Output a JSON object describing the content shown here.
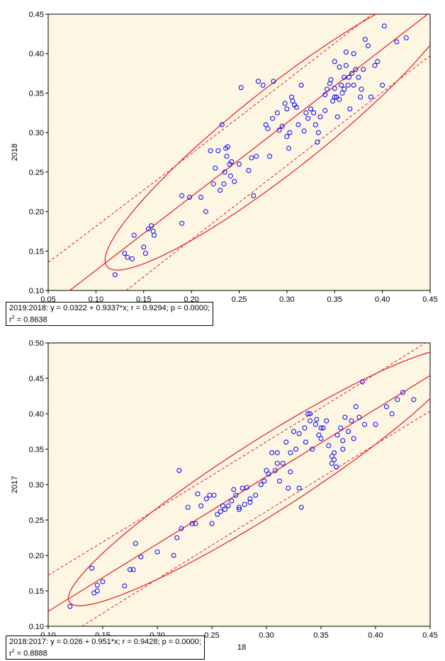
{
  "colors": {
    "background": "#fdf6e3",
    "points": "#0000ff",
    "lines": "#e8181e"
  },
  "chart_data": [
    {
      "type": "scatter",
      "ylabel": "2018",
      "xlabel": "",
      "xlim": [
        0.05,
        0.45
      ],
      "ylim": [
        0.1,
        0.45
      ],
      "xticks": [
        "0.05",
        "0.10",
        "0.15",
        "0.20",
        "0.25",
        "0.30",
        "0.35",
        "0.40",
        "0.45"
      ],
      "yticks": [
        "0.10",
        "0.15",
        "0.20",
        "0.25",
        "0.30",
        "0.35",
        "0.40",
        "0.45"
      ],
      "regression": {
        "intercept": 0.0322,
        "slope": 0.9337
      },
      "stats_line1": "2019:2018:  y = 0.0322 + 0.9337*x;  r = 0.9294; p = 0.0000;",
      "stats_r2_label": "r",
      "stats_r2_value": " = 0.8638",
      "points": [
        [
          0.12,
          0.12
        ],
        [
          0.13,
          0.147
        ],
        [
          0.133,
          0.142
        ],
        [
          0.138,
          0.14
        ],
        [
          0.14,
          0.17
        ],
        [
          0.15,
          0.155
        ],
        [
          0.152,
          0.147
        ],
        [
          0.155,
          0.178
        ],
        [
          0.158,
          0.182
        ],
        [
          0.16,
          0.175
        ],
        [
          0.161,
          0.17
        ],
        [
          0.19,
          0.185
        ],
        [
          0.19,
          0.22
        ],
        [
          0.198,
          0.218
        ],
        [
          0.21,
          0.218
        ],
        [
          0.215,
          0.2
        ],
        [
          0.22,
          0.277
        ],
        [
          0.223,
          0.235
        ],
        [
          0.225,
          0.255
        ],
        [
          0.228,
          0.277
        ],
        [
          0.23,
          0.227
        ],
        [
          0.232,
          0.31
        ],
        [
          0.234,
          0.235
        ],
        [
          0.235,
          0.25
        ],
        [
          0.236,
          0.28
        ],
        [
          0.237,
          0.27
        ],
        [
          0.238,
          0.282
        ],
        [
          0.24,
          0.26
        ],
        [
          0.241,
          0.245
        ],
        [
          0.242,
          0.263
        ],
        [
          0.245,
          0.238
        ],
        [
          0.25,
          0.26
        ],
        [
          0.252,
          0.357
        ],
        [
          0.26,
          0.252
        ],
        [
          0.263,
          0.268
        ],
        [
          0.265,
          0.22
        ],
        [
          0.268,
          0.27
        ],
        [
          0.27,
          0.365
        ],
        [
          0.275,
          0.36
        ],
        [
          0.278,
          0.31
        ],
        [
          0.28,
          0.305
        ],
        [
          0.282,
          0.27
        ],
        [
          0.285,
          0.318
        ],
        [
          0.286,
          0.365
        ],
        [
          0.29,
          0.325
        ],
        [
          0.292,
          0.303
        ],
        [
          0.295,
          0.308
        ],
        [
          0.298,
          0.337
        ],
        [
          0.3,
          0.33
        ],
        [
          0.3,
          0.295
        ],
        [
          0.302,
          0.28
        ],
        [
          0.303,
          0.3
        ],
        [
          0.305,
          0.345
        ],
        [
          0.306,
          0.34
        ],
        [
          0.308,
          0.335
        ],
        [
          0.31,
          0.332
        ],
        [
          0.312,
          0.31
        ],
        [
          0.315,
          0.36
        ],
        [
          0.318,
          0.302
        ],
        [
          0.32,
          0.325
        ],
        [
          0.322,
          0.318
        ],
        [
          0.325,
          0.33
        ],
        [
          0.328,
          0.325
        ],
        [
          0.33,
          0.31
        ],
        [
          0.332,
          0.288
        ],
        [
          0.333,
          0.3
        ],
        [
          0.335,
          0.32
        ],
        [
          0.34,
          0.328
        ],
        [
          0.342,
          0.355
        ],
        [
          0.345,
          0.362
        ],
        [
          0.346,
          0.367
        ],
        [
          0.348,
          0.34
        ],
        [
          0.35,
          0.39
        ],
        [
          0.35,
          0.345
        ],
        [
          0.352,
          0.345
        ],
        [
          0.353,
          0.32
        ],
        [
          0.355,
          0.342
        ],
        [
          0.357,
          0.36
        ],
        [
          0.358,
          0.35
        ],
        [
          0.36,
          0.37
        ],
        [
          0.36,
          0.355
        ],
        [
          0.362,
          0.385
        ],
        [
          0.364,
          0.36
        ],
        [
          0.365,
          0.37
        ],
        [
          0.366,
          0.33
        ],
        [
          0.368,
          0.375
        ],
        [
          0.37,
          0.36
        ],
        [
          0.372,
          0.38
        ],
        [
          0.375,
          0.37
        ],
        [
          0.377,
          0.345
        ],
        [
          0.378,
          0.355
        ],
        [
          0.38,
          0.38
        ],
        [
          0.382,
          0.418
        ],
        [
          0.385,
          0.41
        ],
        [
          0.388,
          0.345
        ],
        [
          0.392,
          0.385
        ],
        [
          0.395,
          0.39
        ],
        [
          0.4,
          0.36
        ],
        [
          0.402,
          0.435
        ],
        [
          0.415,
          0.415
        ],
        [
          0.425,
          0.42
        ],
        [
          0.37,
          0.4
        ],
        [
          0.355,
          0.383
        ],
        [
          0.34,
          0.348
        ],
        [
          0.35,
          0.356
        ],
        [
          0.362,
          0.402
        ]
      ]
    },
    {
      "type": "scatter",
      "ylabel": "2017",
      "xlabel": "18",
      "xlim": [
        0.1,
        0.45
      ],
      "ylim": [
        0.1,
        0.5
      ],
      "xticks": [
        "0.10",
        "0.15",
        "0.20",
        "0.25",
        "0.30",
        "0.35",
        "0.40",
        "0.45"
      ],
      "yticks": [
        "0.10",
        "0.15",
        "0.20",
        "0.25",
        "0.30",
        "0.35",
        "0.40",
        "0.45",
        "0.50"
      ],
      "regression": {
        "intercept": 0.026,
        "slope": 0.951
      },
      "stats_line1": "2018:2017:  y = 0.026 + 0.951*x;  r = 0.9428; p = 0.0000;",
      "stats_r2_label": "r",
      "stats_r2_value": " = 0.8888",
      "points": [
        [
          0.12,
          0.128
        ],
        [
          0.14,
          0.182
        ],
        [
          0.142,
          0.147
        ],
        [
          0.145,
          0.15
        ],
        [
          0.145,
          0.158
        ],
        [
          0.15,
          0.163
        ],
        [
          0.17,
          0.157
        ],
        [
          0.175,
          0.18
        ],
        [
          0.178,
          0.18
        ],
        [
          0.18,
          0.217
        ],
        [
          0.185,
          0.198
        ],
        [
          0.2,
          0.205
        ],
        [
          0.215,
          0.2
        ],
        [
          0.218,
          0.225
        ],
        [
          0.22,
          0.32
        ],
        [
          0.222,
          0.238
        ],
        [
          0.228,
          0.268
        ],
        [
          0.232,
          0.245
        ],
        [
          0.235,
          0.245
        ],
        [
          0.237,
          0.287
        ],
        [
          0.24,
          0.27
        ],
        [
          0.245,
          0.28
        ],
        [
          0.248,
          0.285
        ],
        [
          0.25,
          0.245
        ],
        [
          0.252,
          0.285
        ],
        [
          0.255,
          0.258
        ],
        [
          0.258,
          0.262
        ],
        [
          0.26,
          0.27
        ],
        [
          0.262,
          0.265
        ],
        [
          0.265,
          0.27
        ],
        [
          0.268,
          0.277
        ],
        [
          0.27,
          0.293
        ],
        [
          0.272,
          0.285
        ],
        [
          0.275,
          0.268
        ],
        [
          0.278,
          0.295
        ],
        [
          0.28,
          0.272
        ],
        [
          0.282,
          0.296
        ],
        [
          0.285,
          0.28
        ],
        [
          0.29,
          0.285
        ],
        [
          0.295,
          0.3
        ],
        [
          0.298,
          0.305
        ],
        [
          0.3,
          0.32
        ],
        [
          0.302,
          0.315
        ],
        [
          0.305,
          0.345
        ],
        [
          0.308,
          0.32
        ],
        [
          0.31,
          0.345
        ],
        [
          0.312,
          0.305
        ],
        [
          0.315,
          0.33
        ],
        [
          0.318,
          0.36
        ],
        [
          0.32,
          0.295
        ],
        [
          0.322,
          0.345
        ],
        [
          0.325,
          0.375
        ],
        [
          0.327,
          0.35
        ],
        [
          0.33,
          0.372
        ],
        [
          0.332,
          0.268
        ],
        [
          0.335,
          0.38
        ],
        [
          0.336,
          0.36
        ],
        [
          0.338,
          0.4
        ],
        [
          0.34,
          0.39
        ],
        [
          0.342,
          0.35
        ],
        [
          0.345,
          0.385
        ],
        [
          0.348,
          0.37
        ],
        [
          0.35,
          0.38
        ],
        [
          0.352,
          0.38
        ],
        [
          0.355,
          0.39
        ],
        [
          0.357,
          0.355
        ],
        [
          0.36,
          0.34
        ],
        [
          0.362,
          0.335
        ],
        [
          0.364,
          0.325
        ],
        [
          0.365,
          0.37
        ],
        [
          0.368,
          0.38
        ],
        [
          0.37,
          0.362
        ],
        [
          0.372,
          0.395
        ],
        [
          0.375,
          0.375
        ],
        [
          0.378,
          0.39
        ],
        [
          0.382,
          0.41
        ],
        [
          0.385,
          0.395
        ],
        [
          0.388,
          0.445
        ],
        [
          0.39,
          0.385
        ],
        [
          0.4,
          0.385
        ],
        [
          0.41,
          0.41
        ],
        [
          0.415,
          0.4
        ],
        [
          0.42,
          0.42
        ],
        [
          0.425,
          0.43
        ],
        [
          0.435,
          0.42
        ],
        [
          0.322,
          0.318
        ],
        [
          0.346,
          0.392
        ],
        [
          0.362,
          0.345
        ],
        [
          0.33,
          0.295
        ],
        [
          0.31,
          0.33
        ],
        [
          0.35,
          0.365
        ],
        [
          0.36,
          0.33
        ],
        [
          0.285,
          0.275
        ],
        [
          0.275,
          0.265
        ],
        [
          0.34,
          0.4
        ],
        [
          0.37,
          0.35
        ],
        [
          0.38,
          0.365
        ]
      ]
    }
  ]
}
